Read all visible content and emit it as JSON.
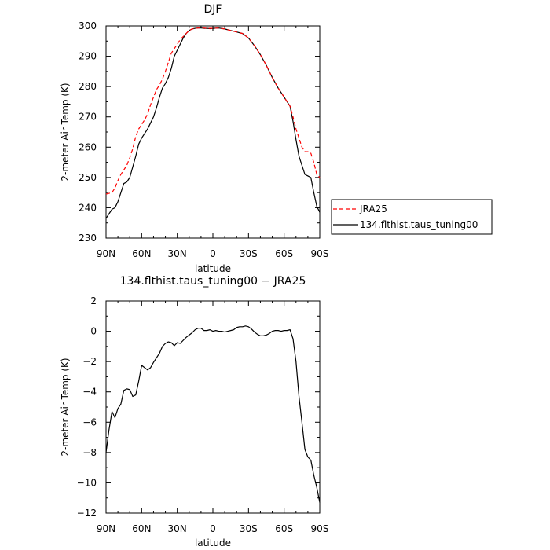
{
  "chart_data": [
    {
      "type": "line",
      "title": "DJF",
      "xlabel": "latitude",
      "ylabel": "2-meter Air Temp (K)",
      "xlim": [
        -90,
        90
      ],
      "ylim": [
        230,
        300
      ],
      "x_ticks": [
        {
          "value": -90,
          "label": "90N"
        },
        {
          "value": -60,
          "label": "60N"
        },
        {
          "value": -30,
          "label": "30N"
        },
        {
          "value": 0,
          "label": "0"
        },
        {
          "value": 30,
          "label": "30S"
        },
        {
          "value": 60,
          "label": "60S"
        },
        {
          "value": 90,
          "label": "90S"
        }
      ],
      "y_ticks": [
        230,
        240,
        250,
        260,
        270,
        280,
        290,
        300
      ],
      "grid": false,
      "legend_position": "right",
      "series": [
        {
          "name": "JRA25",
          "color": "#ff0000",
          "dash": "dashed",
          "x": [
            -90,
            -85,
            -82.5,
            -80,
            -77.5,
            -75,
            -72.5,
            -70,
            -67.5,
            -65,
            -62.5,
            -60,
            -57.5,
            -55,
            -52.5,
            -50,
            -47.5,
            -45,
            -42.5,
            -40,
            -37.5,
            -35,
            -32.5,
            -30,
            -27.5,
            -25,
            -22.5,
            -20,
            -17.5,
            -15,
            -12.5,
            -10,
            -7.5,
            -5,
            -2.5,
            0,
            5,
            10,
            15,
            20,
            25,
            30,
            35,
            40,
            45,
            50,
            55,
            60,
            62.5,
            65,
            67.5,
            70,
            72.5,
            75,
            77.5,
            80,
            82.5,
            85,
            87.5,
            90
          ],
          "y": [
            244.5,
            245,
            246.5,
            249,
            251,
            252.5,
            254,
            256.5,
            259.5,
            263.5,
            266,
            267.5,
            269,
            271,
            274,
            276.5,
            279,
            280.5,
            282.5,
            285,
            288,
            291,
            292.5,
            294,
            295.5,
            296.5,
            297.5,
            298.5,
            299,
            299.2,
            299.3,
            299.3,
            299.3,
            299.2,
            299.2,
            299.2,
            299.3,
            299,
            298.5,
            298,
            297.5,
            296,
            293.5,
            290.5,
            287,
            283,
            279.5,
            276.5,
            275,
            273.5,
            270,
            266,
            263,
            260,
            258.5,
            258.5,
            258,
            255,
            251,
            250
          ]
        },
        {
          "name": "134.flthist.taus_tuning00",
          "color": "#000000",
          "dash": "solid",
          "x": [
            -90,
            -87.5,
            -85,
            -82.5,
            -80,
            -77.5,
            -75,
            -72.5,
            -70,
            -67.5,
            -65,
            -62.5,
            -60,
            -57.5,
            -55,
            -52.5,
            -50,
            -47.5,
            -45,
            -42.5,
            -40,
            -37.5,
            -35,
            -32.5,
            -30,
            -27.5,
            -25,
            -22.5,
            -20,
            -17.5,
            -15,
            -12.5,
            -10,
            -7.5,
            -5,
            -2.5,
            0,
            5,
            10,
            15,
            20,
            25,
            30,
            35,
            40,
            45,
            50,
            55,
            60,
            62.5,
            65,
            67.5,
            70,
            72.5,
            75,
            77.5,
            80,
            82.5,
            85,
            87.5,
            90
          ],
          "y": [
            236.5,
            238,
            239.5,
            240,
            242,
            245,
            248,
            248.5,
            250,
            253.5,
            257,
            261,
            263,
            264.5,
            266,
            268,
            270,
            273,
            276.5,
            279.5,
            281,
            283,
            286,
            290,
            292,
            294,
            296,
            297.5,
            298.5,
            299,
            299.2,
            299.3,
            299.3,
            299.2,
            299.2,
            299.1,
            299.2,
            299.3,
            299,
            298.5,
            298,
            297.5,
            296,
            293.5,
            290.5,
            287,
            283,
            279.5,
            276.5,
            275,
            273.5,
            268.5,
            262.5,
            257,
            254,
            251,
            250.5,
            250,
            245,
            240.5,
            238.5
          ]
        }
      ]
    },
    {
      "type": "line",
      "title": "134.flthist.taus_tuning00 − JRA25",
      "xlabel": "latitude",
      "ylabel": "2-meter Air Temp (K)",
      "xlim": [
        -90,
        90
      ],
      "ylim": [
        -12,
        2
      ],
      "x_ticks": [
        {
          "value": -90,
          "label": "90N"
        },
        {
          "value": -60,
          "label": "60N"
        },
        {
          "value": -30,
          "label": "30N"
        },
        {
          "value": 0,
          "label": "0"
        },
        {
          "value": 30,
          "label": "30S"
        },
        {
          "value": 60,
          "label": "60S"
        },
        {
          "value": 90,
          "label": "90S"
        }
      ],
      "y_ticks": [
        {
          "value": 2,
          "label": "2"
        },
        {
          "value": 0,
          "label": "0"
        },
        {
          "value": -2,
          "label": "−2"
        },
        {
          "value": -4,
          "label": "−4"
        },
        {
          "value": -6,
          "label": "−6"
        },
        {
          "value": -8,
          "label": "−8"
        },
        {
          "value": -10,
          "label": "−10"
        },
        {
          "value": -12,
          "label": "−12"
        }
      ],
      "grid": false,
      "series": [
        {
          "color": "#000000",
          "dash": "solid",
          "x": [
            -90,
            -87.5,
            -85,
            -82.5,
            -80,
            -77.5,
            -75,
            -72.5,
            -70,
            -67.5,
            -65,
            -62.5,
            -60,
            -57.5,
            -55,
            -52.5,
            -50,
            -47.5,
            -45,
            -42.5,
            -40,
            -37.5,
            -35,
            -32.5,
            -30,
            -27.5,
            -25,
            -22.5,
            -20,
            -17.5,
            -15,
            -12.5,
            -10,
            -7.5,
            -5,
            -2.5,
            0,
            2.5,
            5,
            7.5,
            10,
            12.5,
            15,
            17.5,
            20,
            22.5,
            25,
            27.5,
            30,
            32.5,
            35,
            37.5,
            40,
            42.5,
            45,
            47.5,
            50,
            52.5,
            55,
            57.5,
            60,
            62.5,
            65,
            67.5,
            70,
            72.5,
            75,
            77.5,
            80,
            82.5,
            85,
            87.5,
            90
          ],
          "y": [
            -8,
            -6.5,
            -5.3,
            -5.7,
            -5.1,
            -4.8,
            -3.9,
            -3.8,
            -3.85,
            -4.3,
            -4.2,
            -3.3,
            -2.25,
            -2.4,
            -2.55,
            -2.4,
            -2.05,
            -1.75,
            -1.45,
            -1.0,
            -0.8,
            -0.7,
            -0.75,
            -0.95,
            -0.75,
            -0.8,
            -0.6,
            -0.4,
            -0.25,
            -0.1,
            0.1,
            0.2,
            0.2,
            0.05,
            0.05,
            0.1,
            0.0,
            0.05,
            0.0,
            0.0,
            -0.05,
            0.0,
            0.05,
            0.1,
            0.25,
            0.3,
            0.3,
            0.35,
            0.3,
            0.15,
            -0.05,
            -0.2,
            -0.3,
            -0.3,
            -0.25,
            -0.15,
            0.0,
            0.05,
            0.05,
            0.0,
            0.05,
            0.05,
            0.1,
            -0.5,
            -2.0,
            -4.3,
            -6.0,
            -7.8,
            -8.3,
            -8.5,
            -9.5,
            -10.3,
            -11.3
          ]
        }
      ]
    }
  ]
}
